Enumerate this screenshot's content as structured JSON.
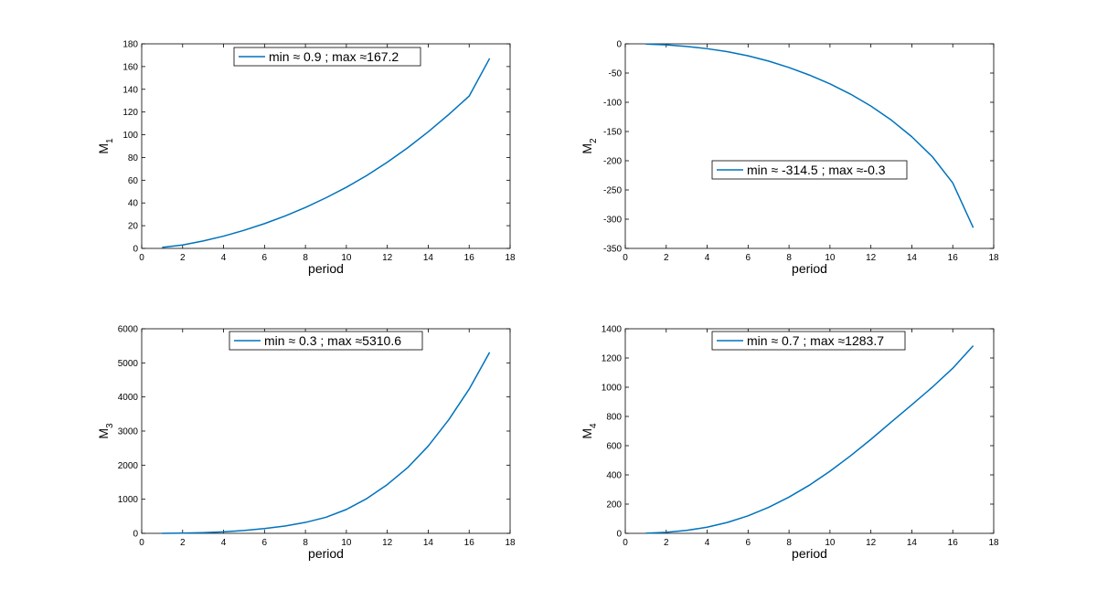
{
  "figure": {
    "background": "#ffffff",
    "line_color": "#0072bd"
  },
  "chart_data": [
    {
      "type": "line",
      "xlabel": "period",
      "ylabel": "M",
      "ylabel_sub": "1",
      "xlim": [
        0,
        18
      ],
      "ylim": [
        0,
        180
      ],
      "xticks": [
        0,
        2,
        4,
        6,
        8,
        10,
        12,
        14,
        16,
        18
      ],
      "yticks": [
        0,
        20,
        40,
        60,
        80,
        100,
        120,
        140,
        160,
        180
      ],
      "legend_position": "top-center",
      "grid": false,
      "series": [
        {
          "name": "min ≈ 0.9 ; max ≈167.2",
          "x": [
            1,
            2,
            3,
            4,
            5,
            6,
            7,
            8,
            9,
            10,
            11,
            12,
            13,
            14,
            15,
            16,
            17
          ],
          "y": [
            0.9,
            3.0,
            6.5,
            10.8,
            15.9,
            21.8,
            28.5,
            36.0,
            44.5,
            53.8,
            64.2,
            75.8,
            88.6,
            102.6,
            117.8,
            134.0,
            167.2
          ]
        }
      ]
    },
    {
      "type": "line",
      "xlabel": "period",
      "ylabel": "M",
      "ylabel_sub": "2",
      "xlim": [
        0,
        18
      ],
      "ylim": [
        -350,
        0
      ],
      "xticks": [
        0,
        2,
        4,
        6,
        8,
        10,
        12,
        14,
        16,
        18
      ],
      "yticks": [
        -350,
        -300,
        -250,
        -200,
        -150,
        -100,
        -50,
        0
      ],
      "legend_position": "center-right",
      "grid": false,
      "series": [
        {
          "name": "min ≈ -314.5 ; max ≈-0.3",
          "x": [
            1,
            2,
            3,
            4,
            5,
            6,
            7,
            8,
            9,
            10,
            11,
            12,
            13,
            14,
            15,
            16,
            17
          ],
          "y": [
            -0.3,
            -1.8,
            -4.5,
            -8.3,
            -13.5,
            -20.5,
            -29.5,
            -40.5,
            -53.5,
            -68.5,
            -86.0,
            -106.5,
            -130.5,
            -159.0,
            -193.0,
            -238.0,
            -314.5
          ]
        }
      ]
    },
    {
      "type": "line",
      "xlabel": "period",
      "ylabel": "M",
      "ylabel_sub": "3",
      "xlim": [
        0,
        18
      ],
      "ylim": [
        0,
        6000
      ],
      "xticks": [
        0,
        2,
        4,
        6,
        8,
        10,
        12,
        14,
        16,
        18
      ],
      "yticks": [
        0,
        1000,
        2000,
        3000,
        4000,
        5000,
        6000
      ],
      "legend_position": "top-center",
      "grid": false,
      "series": [
        {
          "name": "min ≈ 0.3 ; max ≈5310.6",
          "x": [
            1,
            2,
            3,
            4,
            5,
            6,
            7,
            8,
            9,
            10,
            11,
            12,
            13,
            14,
            15,
            16,
            17
          ],
          "y": [
            0.3,
            5,
            20,
            45,
            85,
            140,
            215,
            320,
            470,
            700,
            1020,
            1430,
            1930,
            2560,
            3330,
            4230,
            5310.6
          ]
        }
      ]
    },
    {
      "type": "line",
      "xlabel": "period",
      "ylabel": "M",
      "ylabel_sub": "4",
      "xlim": [
        0,
        18
      ],
      "ylim": [
        0,
        1400
      ],
      "xticks": [
        0,
        2,
        4,
        6,
        8,
        10,
        12,
        14,
        16,
        18
      ],
      "yticks": [
        0,
        200,
        400,
        600,
        800,
        1000,
        1200,
        1400
      ],
      "legend_position": "top-center",
      "grid": false,
      "series": [
        {
          "name": "min ≈ 0.7 ; max ≈1283.7",
          "x": [
            1,
            2,
            3,
            4,
            5,
            6,
            7,
            8,
            9,
            10,
            11,
            12,
            13,
            14,
            15,
            16,
            17
          ],
          "y": [
            0.7,
            7,
            20,
            42,
            75,
            120,
            178,
            248,
            330,
            425,
            530,
            643,
            762,
            880,
            1000,
            1130,
            1283.7
          ]
        }
      ]
    }
  ]
}
